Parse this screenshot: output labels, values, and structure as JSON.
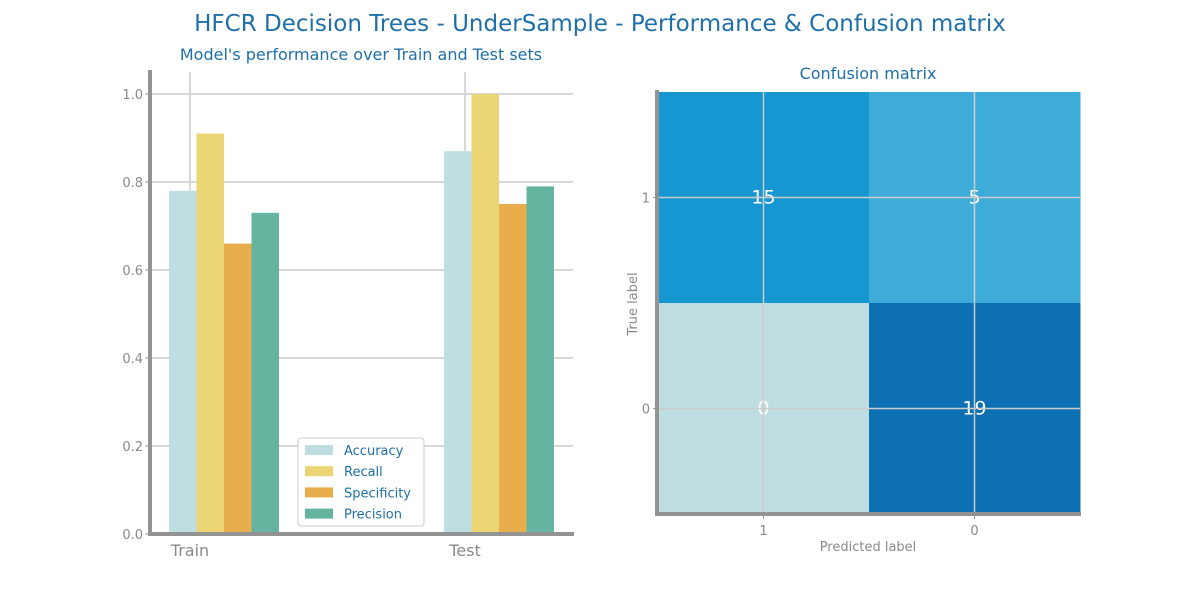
{
  "figure": {
    "title": "HFCR Decision Trees - UnderSample - Performance & Confusion matrix"
  },
  "chart_data": [
    {
      "type": "bar",
      "title": "Model's performance over Train and Test sets",
      "xlabel": "",
      "ylabel": "",
      "categories": [
        "Train",
        "Test"
      ],
      "ylim": [
        0,
        1.05
      ],
      "yticks": [
        0.0,
        0.2,
        0.4,
        0.6,
        0.8,
        1.0
      ],
      "yticklabels": [
        "0.0",
        "0.2",
        "0.4",
        "0.6",
        "0.8",
        "1.0"
      ],
      "series": [
        {
          "name": "Accuracy",
          "color": "#bfdee2",
          "values": [
            0.78,
            0.87
          ]
        },
        {
          "name": "Recall",
          "color": "#ebd574",
          "values": [
            0.91,
            1.0
          ]
        },
        {
          "name": "Specificity",
          "color": "#e8ae4c",
          "values": [
            0.66,
            0.75
          ]
        },
        {
          "name": "Precision",
          "color": "#64b4a0",
          "values": [
            0.73,
            0.79
          ]
        }
      ],
      "grid": true,
      "legend": "lower-center"
    },
    {
      "type": "heatmap",
      "title": "Confusion matrix",
      "xlabel": "Predicted label",
      "ylabel": "True label",
      "x_categories": [
        "1",
        "0"
      ],
      "y_categories": [
        "1",
        "0"
      ],
      "values": [
        [
          15,
          5
        ],
        [
          0,
          19
        ]
      ],
      "cell_colors": [
        [
          "#1797d1",
          "#3dacd9"
        ],
        [
          "#bfdee2",
          "#0d70b3"
        ]
      ],
      "grid": true
    }
  ]
}
